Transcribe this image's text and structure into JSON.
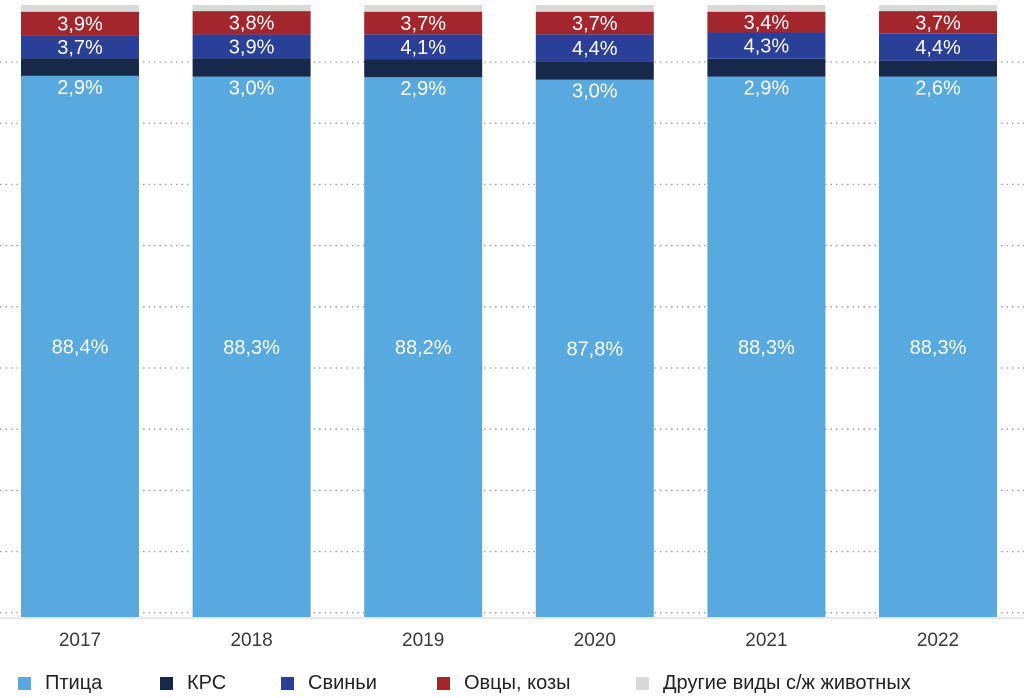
{
  "chart_data": {
    "type": "bar",
    "stacked": true,
    "categories": [
      "2017",
      "2018",
      "2019",
      "2020",
      "2021",
      "2022"
    ],
    "series": [
      {
        "name": "Птица",
        "color": "#57a9df",
        "values": [
          88.4,
          88.3,
          88.2,
          87.8,
          88.3,
          88.3
        ],
        "labels": [
          "88,4%",
          "88,3%",
          "88,2%",
          "87,8%",
          "88,3%",
          "88,3%"
        ]
      },
      {
        "name": "КРС",
        "color": "#16294a",
        "values": [
          2.9,
          3.0,
          2.9,
          3.0,
          2.9,
          2.6
        ],
        "labels": [
          "2,9%",
          "3,0%",
          "2,9%",
          "3,0%",
          "2,9%",
          "2,6%"
        ]
      },
      {
        "name": "Свиньи",
        "color": "#2a3f97",
        "values": [
          3.7,
          3.9,
          4.1,
          4.4,
          4.3,
          4.4
        ],
        "labels": [
          "3,7%",
          "3,9%",
          "4,1%",
          "4,4%",
          "4,3%",
          "4,4%"
        ]
      },
      {
        "name": "Овцы, козы",
        "color": "#a3262c",
        "values": [
          3.9,
          3.8,
          3.7,
          3.7,
          3.4,
          3.7
        ],
        "labels": [
          "3,9%",
          "3,8%",
          "3,7%",
          "3,7%",
          "3,4%",
          "3,7%"
        ]
      },
      {
        "name": "Другие виды с/ж животных",
        "color": "#d9d9d9",
        "values": [
          1.1,
          1.0,
          1.1,
          1.1,
          1.1,
          1.0
        ],
        "labels": []
      }
    ],
    "ylim": [
      0,
      100
    ],
    "grid": "dotted horizontal",
    "legend_position": "bottom"
  }
}
